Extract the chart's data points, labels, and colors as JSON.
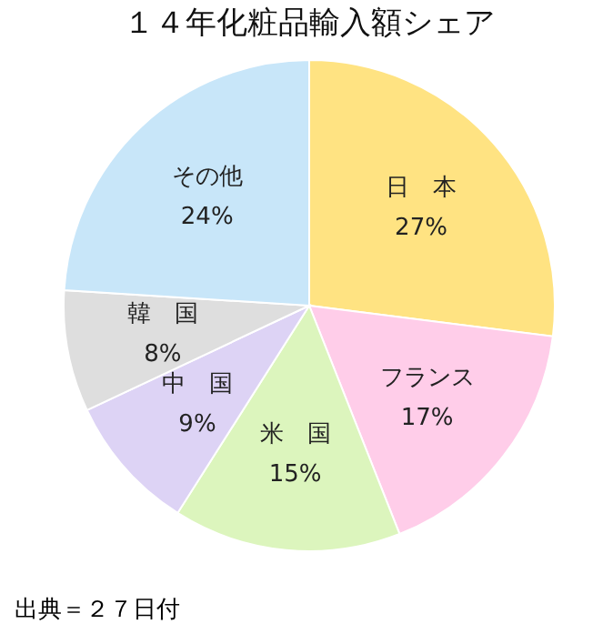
{
  "chart_data": {
    "type": "pie",
    "title": "１４年化粧品輸入額シェア",
    "categories": [
      "日　本",
      "フランス",
      "米　国",
      "中　国",
      "韓　国",
      "その他"
    ],
    "values": [
      27,
      17,
      15,
      9,
      8,
      24
    ],
    "colors": [
      "#ffe382",
      "#ffcde9",
      "#dcf5bd",
      "#ddd3f5",
      "#dedede",
      "#c8e6f9"
    ],
    "value_labels": [
      "27%",
      "17%",
      "15%",
      "9%",
      "8%",
      "24%"
    ],
    "annotations": [
      "出典＝２７日付"
    ]
  }
}
